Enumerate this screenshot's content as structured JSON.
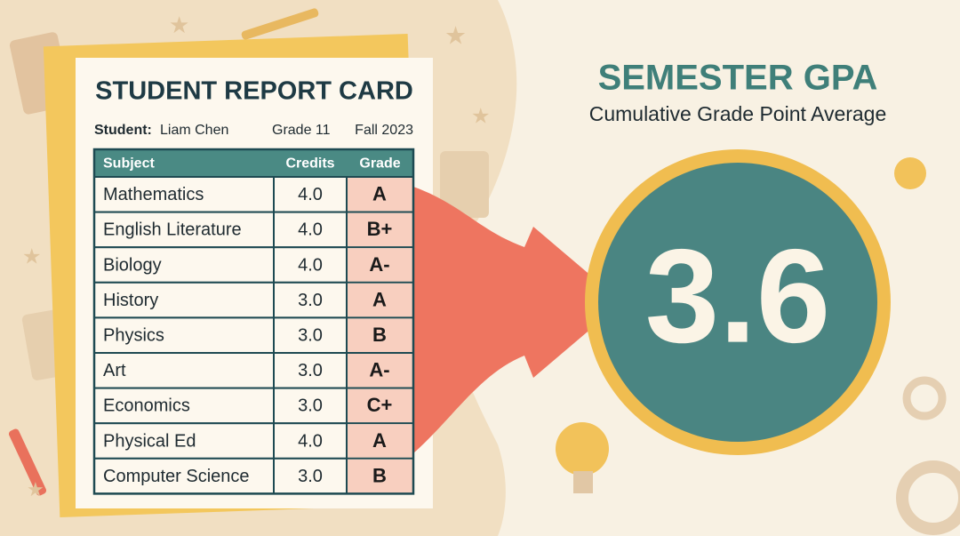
{
  "card": {
    "title": "STUDENT REPORT CARD",
    "student_label": "Student:",
    "student_name": "Liam Chen",
    "grade_level": "Grade 11",
    "term": "Fall 2023",
    "table": {
      "header": [
        "Subject",
        "Credits",
        "Grade"
      ],
      "rows": [
        [
          "Mathematics",
          "4.0",
          "A"
        ],
        [
          "English Literature",
          "4.0",
          "B+"
        ],
        [
          "Biology",
          "4.0",
          "A-"
        ],
        [
          "History",
          "3.0",
          "A"
        ],
        [
          "Physics",
          "3.0",
          "B"
        ],
        [
          "Art",
          "3.0",
          "A-"
        ],
        [
          "Economics",
          "3.0",
          "C+"
        ],
        [
          "Physical Ed",
          "4.0",
          "A"
        ],
        [
          "Computer Science",
          "3.0",
          "B"
        ]
      ]
    }
  },
  "gpa": {
    "title": "SEMESTER GPA",
    "subtitle": "Cumulative Grade Point Average",
    "value": "3.6"
  }
}
